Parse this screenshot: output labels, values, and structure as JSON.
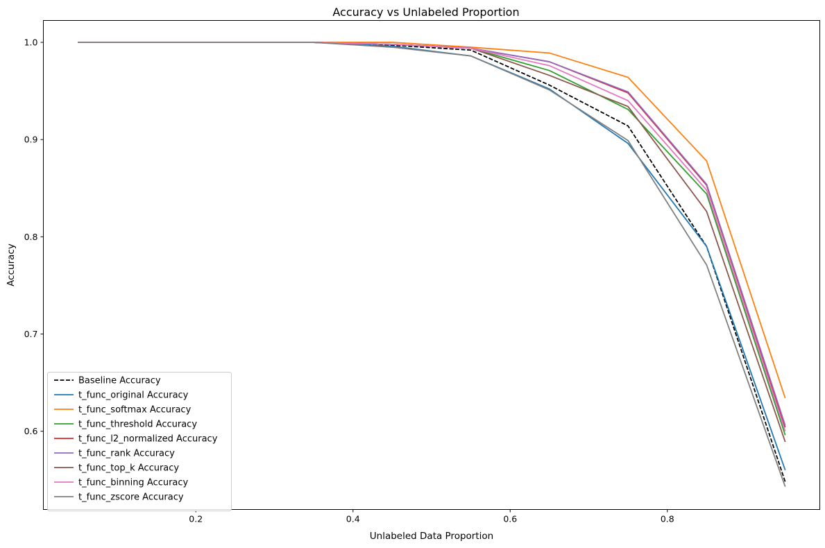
{
  "chart_data": {
    "type": "line",
    "title": "Accuracy vs Unlabeled Proportion",
    "xlabel": "Unlabeled Data Proportion",
    "ylabel": "Accuracy",
    "xlim": [
      0.006,
      0.994
    ],
    "ylim": [
      0.5195,
      1.0225
    ],
    "xticks": [
      0.2,
      0.4,
      0.6,
      0.8
    ],
    "yticks": [
      0.6,
      0.7,
      0.8,
      0.9,
      1.0
    ],
    "xtick_labels": [
      "0.2",
      "0.4",
      "0.6",
      "0.8"
    ],
    "ytick_labels": [
      "0.6",
      "0.7",
      "0.8",
      "0.9",
      "1.0"
    ],
    "grid": false,
    "legend_position": "lower-left",
    "x": [
      0.05,
      0.15,
      0.25,
      0.35,
      0.45,
      0.55,
      0.65,
      0.75,
      0.85,
      0.95
    ],
    "series": [
      {
        "name": "Baseline Accuracy",
        "color": "#000000",
        "dash": true,
        "values": [
          1.0,
          1.0,
          1.0,
          1.0,
          0.997,
          0.992,
          0.956,
          0.914,
          0.79,
          0.548
        ]
      },
      {
        "name": "t_func_original Accuracy",
        "color": "#1f77b4",
        "dash": false,
        "values": [
          1.0,
          1.0,
          1.0,
          1.0,
          0.996,
          0.986,
          0.952,
          0.896,
          0.79,
          0.56
        ]
      },
      {
        "name": "t_func_softmax Accuracy",
        "color": "#ff7f0e",
        "dash": false,
        "values": [
          1.0,
          1.0,
          1.0,
          1.0,
          1.0,
          0.995,
          0.989,
          0.964,
          0.878,
          0.634
        ]
      },
      {
        "name": "t_func_threshold Accuracy",
        "color": "#2ca02c",
        "dash": false,
        "values": [
          1.0,
          1.0,
          1.0,
          1.0,
          0.998,
          0.994,
          0.971,
          0.931,
          0.844,
          0.596
        ]
      },
      {
        "name": "t_func_l2_normalized Accuracy",
        "color": "#d62728",
        "dash": false,
        "values": [
          1.0,
          1.0,
          1.0,
          1.0,
          0.998,
          0.994,
          0.98,
          0.948,
          0.853,
          0.604
        ]
      },
      {
        "name": "t_func_rank Accuracy",
        "color": "#9467bd",
        "dash": false,
        "values": [
          1.0,
          1.0,
          1.0,
          1.0,
          0.998,
          0.994,
          0.98,
          0.949,
          0.854,
          0.606
        ]
      },
      {
        "name": "t_func_top_k Accuracy",
        "color": "#8c564b",
        "dash": false,
        "values": [
          1.0,
          1.0,
          1.0,
          1.0,
          0.998,
          0.994,
          0.966,
          0.934,
          0.826,
          0.589
        ]
      },
      {
        "name": "t_func_binning Accuracy",
        "color": "#e377c2",
        "dash": false,
        "values": [
          1.0,
          1.0,
          1.0,
          1.0,
          0.998,
          0.994,
          0.976,
          0.94,
          0.848,
          0.6
        ]
      },
      {
        "name": "t_func_zscore Accuracy",
        "color": "#7f7f7f",
        "dash": false,
        "values": [
          1.0,
          1.0,
          1.0,
          1.0,
          0.995,
          0.986,
          0.951,
          0.899,
          0.771,
          0.543
        ]
      }
    ]
  }
}
